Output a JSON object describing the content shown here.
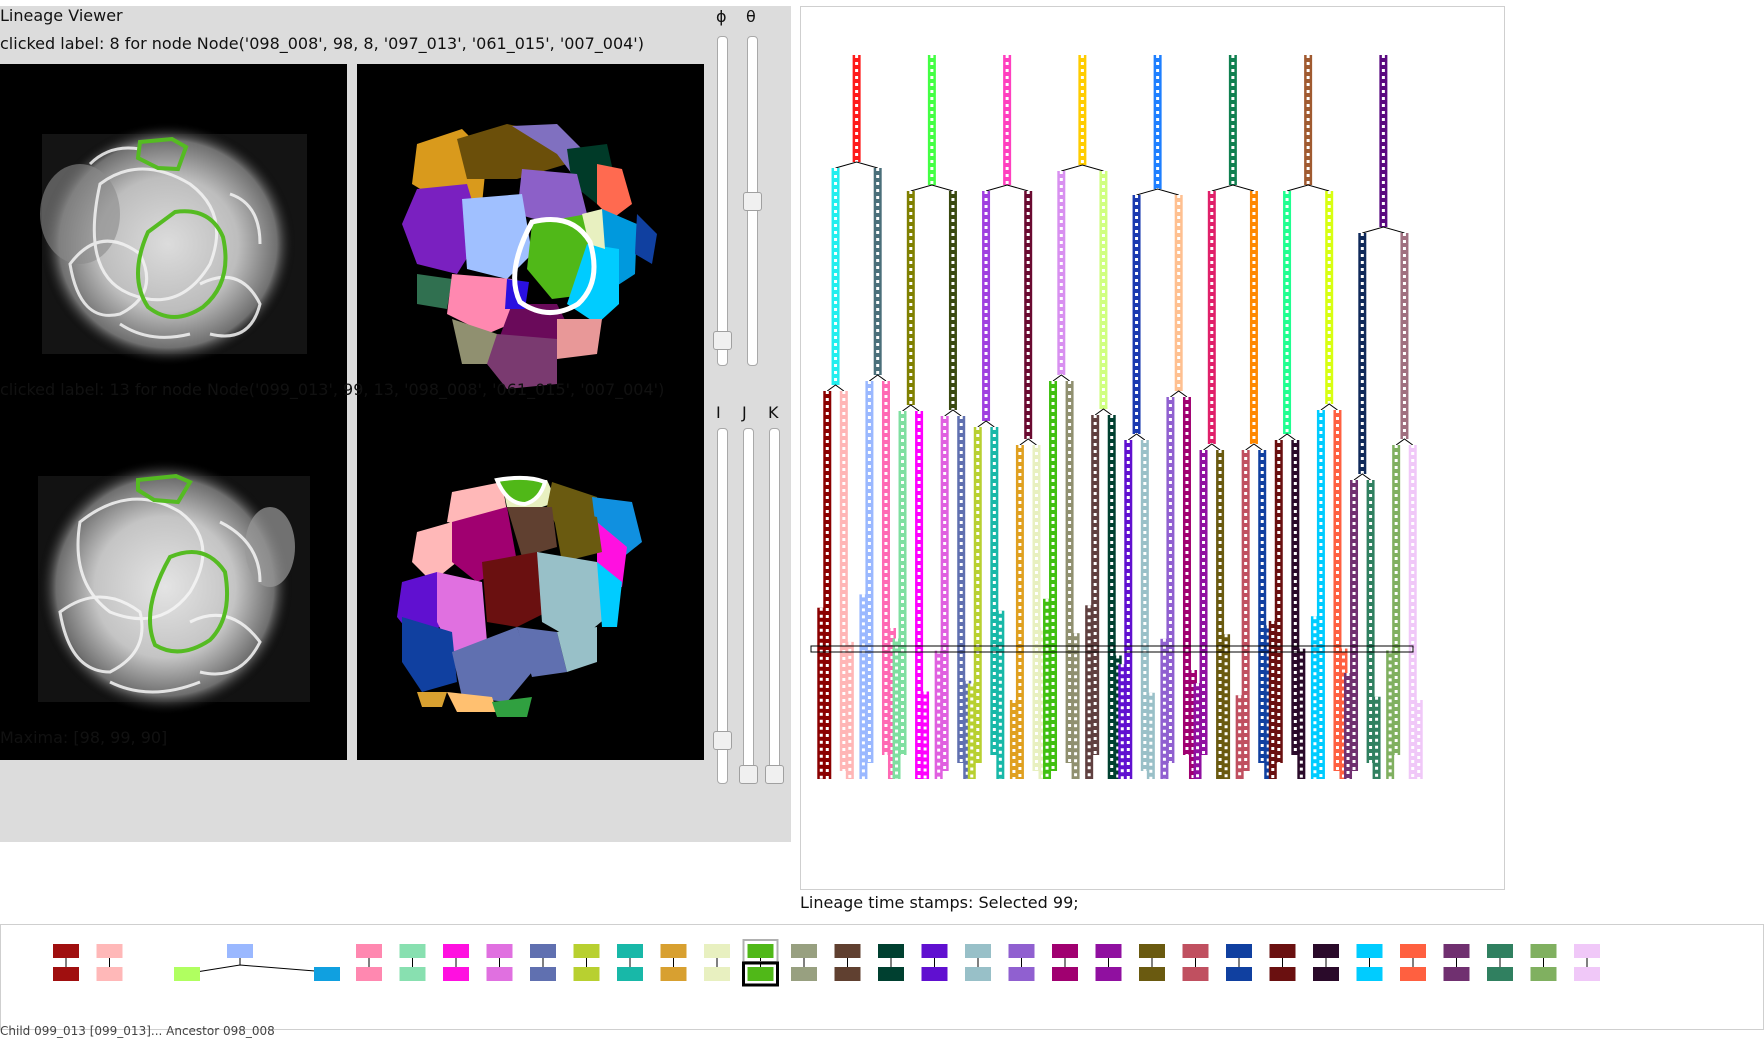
{
  "app": {
    "title": "Lineage Viewer"
  },
  "top_view": {
    "clicked_label": "clicked label: 8 for node Node('098_008', 98, 8, '097_013', '061_015', '007_004')"
  },
  "bottom_view": {
    "clicked_label": "clicked label: 13 for node Node('099_013', 99, 13, '098_008', '061_015', '007_004')"
  },
  "maxima_text": "Maxima: [98, 99, 90]",
  "sliders": {
    "phi": {
      "label": "ϕ",
      "value_fraction": 0.05
    },
    "theta": {
      "label": "θ",
      "value_fraction": 0.5
    },
    "I": {
      "label": "I",
      "value_fraction": 0.1
    },
    "J": {
      "label": "J",
      "value_fraction": 0.0
    },
    "K": {
      "label": "K",
      "value_fraction": 0.0
    }
  },
  "lineage": {
    "status_text": "Lineage time stamps: Selected 99;",
    "selected_time": 99,
    "roots": [
      {
        "color": "#ff1a1a",
        "children": [
          {
            "color": "#22eeee",
            "children": [
              {
                "color": "#8b0000"
              },
              {
                "color": "#ffb6b6"
              }
            ]
          },
          {
            "color": "#4a6f7a",
            "children": [
              {
                "color": "#9ab8ff"
              },
              {
                "color": "#ff69b4"
              }
            ]
          }
        ]
      },
      {
        "color": "#44ff44",
        "children": [
          {
            "color": "#808000",
            "children": [
              {
                "color": "#7fdfa0"
              },
              {
                "color": "#ff00ff"
              }
            ]
          },
          {
            "color": "#3a4a10",
            "children": [
              {
                "color": "#e060e0"
              },
              {
                "color": "#6070b0"
              }
            ]
          }
        ]
      },
      {
        "color": "#ff3fbf",
        "children": [
          {
            "color": "#a040e0",
            "children": [
              {
                "color": "#b8d030"
              },
              {
                "color": "#18b8a8"
              }
            ]
          },
          {
            "color": "#6a0a30",
            "children": [
              {
                "color": "#e0a020"
              },
              {
                "color": "#e8f0c0"
              }
            ]
          }
        ]
      },
      {
        "color": "#ffcc00",
        "children": [
          {
            "color": "#d890f0",
            "children": [
              {
                "color": "#40c010"
              },
              {
                "color": "#909070"
              }
            ]
          },
          {
            "color": "#d0ff80",
            "children": [
              {
                "color": "#604040"
              },
              {
                "color": "#004030"
              }
            ]
          }
        ]
      },
      {
        "color": "#1e7fff",
        "children": [
          {
            "color": "#1a3ab0",
            "children": [
              {
                "color": "#6010d0"
              },
              {
                "color": "#9ac0c8"
              }
            ]
          },
          {
            "color": "#ffc090",
            "children": [
              {
                "color": "#9060d0"
              },
              {
                "color": "#a00070"
              }
            ]
          }
        ]
      },
      {
        "color": "#108050",
        "children": [
          {
            "color": "#e0206a",
            "children": [
              {
                "color": "#9010a0"
              },
              {
                "color": "#6a5a10"
              }
            ]
          },
          {
            "color": "#ff8800",
            "children": [
              {
                "color": "#c05060"
              },
              {
                "color": "#1040a0"
              }
            ]
          }
        ]
      },
      {
        "color": "#a05a30",
        "children": [
          {
            "color": "#20ff90",
            "children": [
              {
                "color": "#6a1010"
              },
              {
                "color": "#2a0a2a"
              }
            ]
          },
          {
            "color": "#d8ff10",
            "children": [
              {
                "color": "#00ccff"
              },
              {
                "color": "#ff6040"
              }
            ]
          }
        ]
      },
      {
        "color": "#5a0a80",
        "children": [
          {
            "color": "#102a5a",
            "children": [
              {
                "color": "#703070"
              },
              {
                "color": "#308060"
              }
            ]
          },
          {
            "color": "#a07080",
            "children": [
              {
                "color": "#80b060"
              },
              {
                "color": "#f0c8f8"
              }
            ]
          }
        ]
      }
    ]
  },
  "cell_strip": {
    "items": [
      {
        "type": "single",
        "color": "#a00f0f"
      },
      {
        "type": "single",
        "color": "#ffb8b8"
      },
      {
        "type": "split",
        "parent": "#9ab8ff",
        "left": "#b0ff60",
        "right": "#10a0e0"
      },
      {
        "type": "single",
        "color": "#ff88b0"
      },
      {
        "type": "single",
        "color": "#88e0b0"
      },
      {
        "type": "single",
        "color": "#ff10e0"
      },
      {
        "type": "single",
        "color": "#e070e0"
      },
      {
        "type": "single",
        "color": "#6070b0"
      },
      {
        "type": "single",
        "color": "#b8d030"
      },
      {
        "type": "single",
        "color": "#18b8a8"
      },
      {
        "type": "single",
        "color": "#d8a030"
      },
      {
        "type": "single",
        "color": "#e8f0c0"
      },
      {
        "type": "selected",
        "color": "#50b818"
      },
      {
        "type": "single",
        "color": "#98a080"
      },
      {
        "type": "single",
        "color": "#604030"
      },
      {
        "type": "single",
        "color": "#004030"
      },
      {
        "type": "single",
        "color": "#6010d0"
      },
      {
        "type": "single",
        "color": "#98c0c8"
      },
      {
        "type": "single",
        "color": "#9060d0"
      },
      {
        "type": "single",
        "color": "#a00070"
      },
      {
        "type": "single",
        "color": "#9010a0"
      },
      {
        "type": "single",
        "color": "#6a5a10"
      },
      {
        "type": "single",
        "color": "#c05060"
      },
      {
        "type": "single",
        "color": "#1040a0"
      },
      {
        "type": "single",
        "color": "#6a1010"
      },
      {
        "type": "single",
        "color": "#2a0a2a"
      },
      {
        "type": "single",
        "color": "#00ccff"
      },
      {
        "type": "single",
        "color": "#ff6040"
      },
      {
        "type": "single",
        "color": "#703070"
      },
      {
        "type": "single",
        "color": "#308060"
      },
      {
        "type": "single",
        "color": "#80b060"
      },
      {
        "type": "single",
        "color": "#f0c8f8"
      }
    ]
  },
  "footer_text": "Child 099_013 [099_013]... Ancestor 098_008"
}
